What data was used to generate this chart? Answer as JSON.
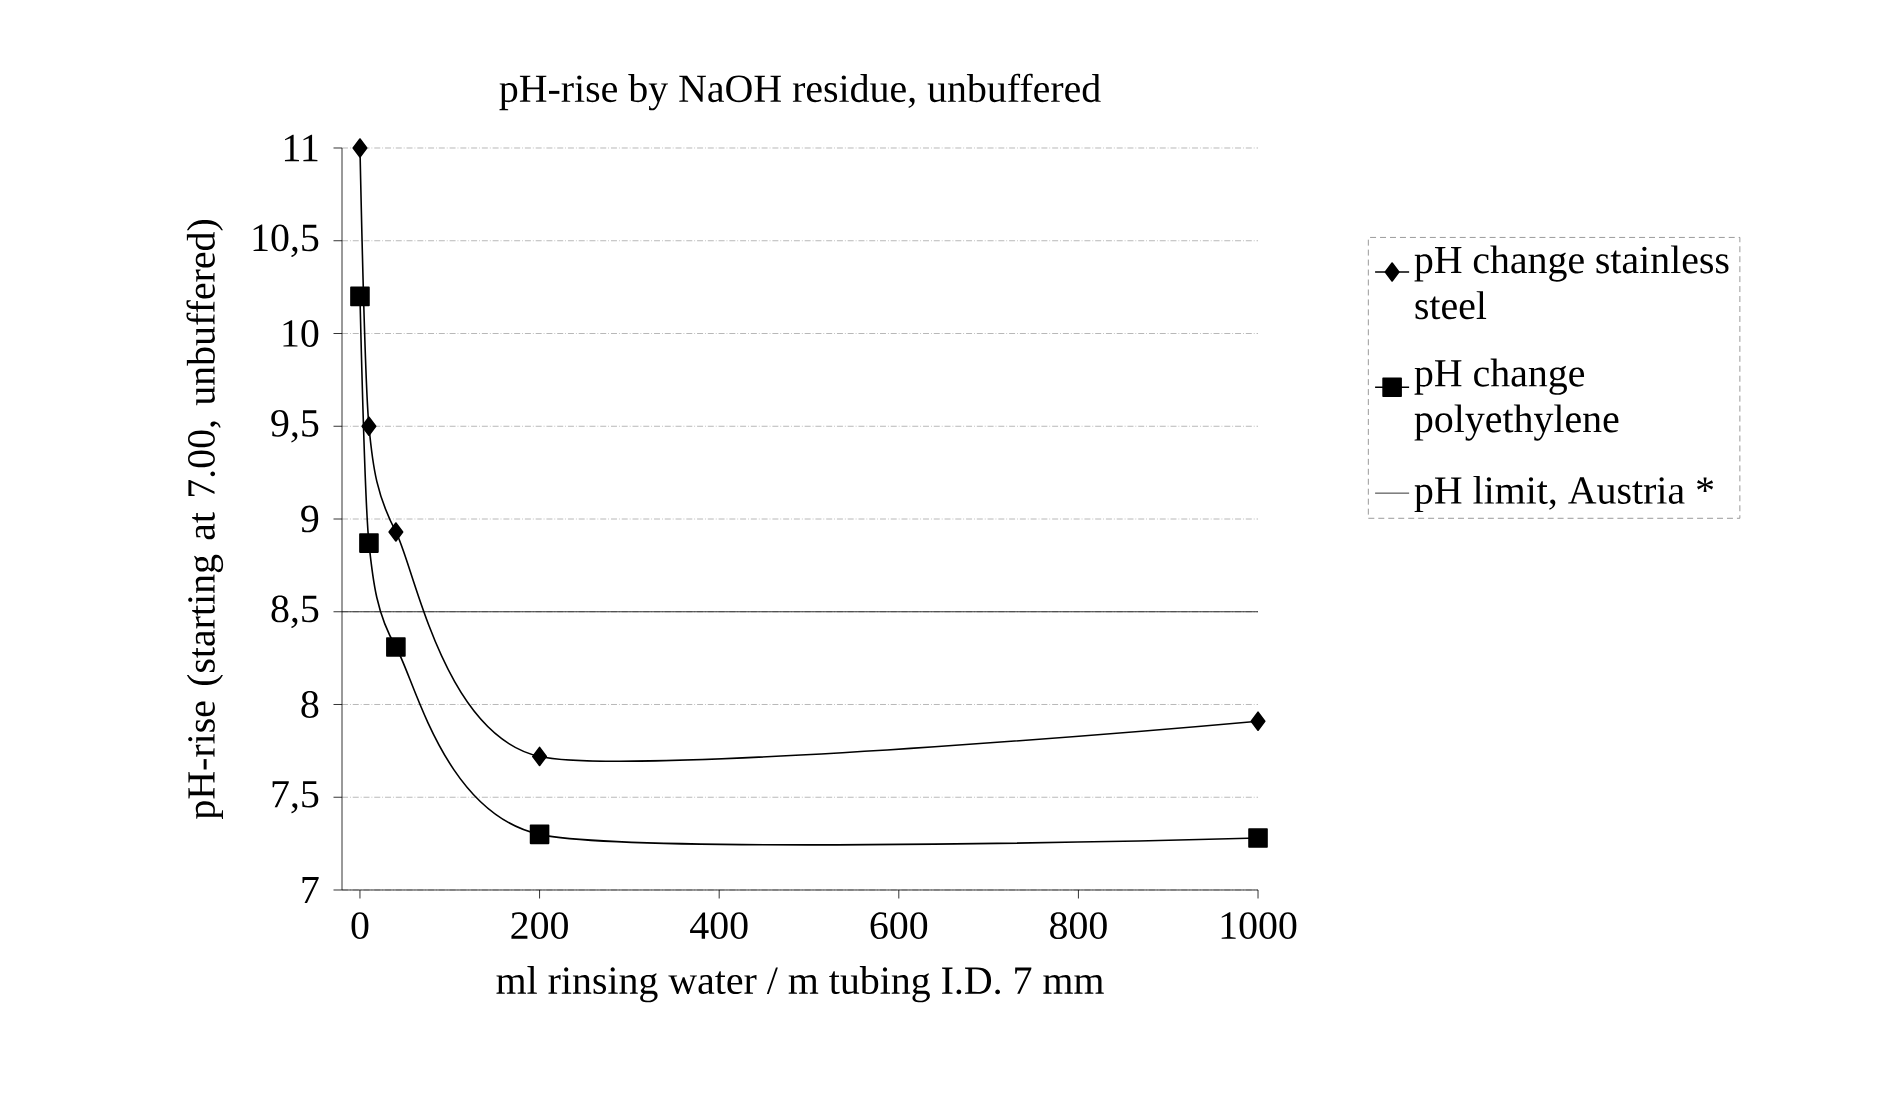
{
  "chart_data": {
    "type": "line",
    "title": "pH-rise by NaOH residue, unbuffered",
    "xlabel": "ml rinsing water / m tubing I.D. 7 mm",
    "ylabel": "pH-rise (starting at 7.00, unbuffered)",
    "series": [
      {
        "name": "pH change stainless steel",
        "color": "#000000",
        "marker": "diamond",
        "x": [
          0,
          10,
          40,
          200,
          1000
        ],
        "values": [
          11,
          9.5,
          8.93,
          7.72,
          7.91
        ]
      },
      {
        "name": "pH change polyethylene",
        "color": "#000000",
        "marker": "square",
        "x": [
          0,
          10,
          40,
          200,
          1000
        ],
        "values": [
          10.2,
          8.87,
          8.31,
          7.3,
          7.28
        ]
      }
    ],
    "ref_lines": [
      {
        "axis": "y",
        "value": 8.5,
        "label": "pH limit, Austria *",
        "color": "#000000",
        "line_style": "solid"
      }
    ],
    "xlim": [
      -20,
      1000
    ],
    "ylim": [
      7,
      11
    ],
    "xticks": [
      0,
      200,
      400,
      600,
      800,
      1000
    ],
    "yticks": [
      7,
      {
        "value": 7.5,
        "label": "7,5"
      },
      8,
      {
        "value": 8.5,
        "label": "8,5"
      },
      9,
      {
        "value": 9.5,
        "label": "9,5"
      },
      10,
      {
        "value": 10.5,
        "label": "10,5"
      },
      11
    ],
    "grid": "y",
    "legend": "right",
    "line_style": "solid"
  }
}
